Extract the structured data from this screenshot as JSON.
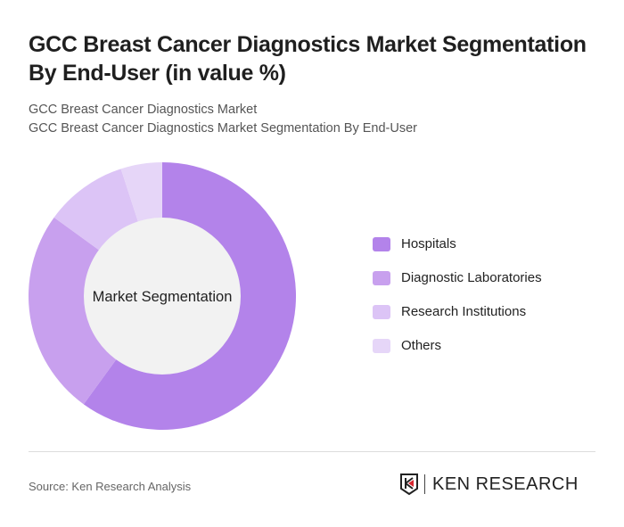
{
  "header": {
    "title": "GCC Breast Cancer Diagnostics Market Segmentation By End-User (in value %)",
    "subtitle1": "GCC Breast Cancer Diagnostics Market",
    "subtitle2": "GCC Breast Cancer Diagnostics Market Segmentation By End-User"
  },
  "chart_data": {
    "type": "pie",
    "donut": true,
    "center_label": "Market Segmentation",
    "categories": [
      "Hospitals",
      "Diagnostic Laboratories",
      "Research Institutions",
      "Others"
    ],
    "values": [
      60,
      25,
      10,
      5
    ],
    "colors": [
      "#b383ea",
      "#c8a0ee",
      "#dcc4f6",
      "#e6d6f8"
    ],
    "legend_position": "right"
  },
  "footer": {
    "source": "Source: Ken Research Analysis",
    "logo": "KEN RESEARCH"
  }
}
